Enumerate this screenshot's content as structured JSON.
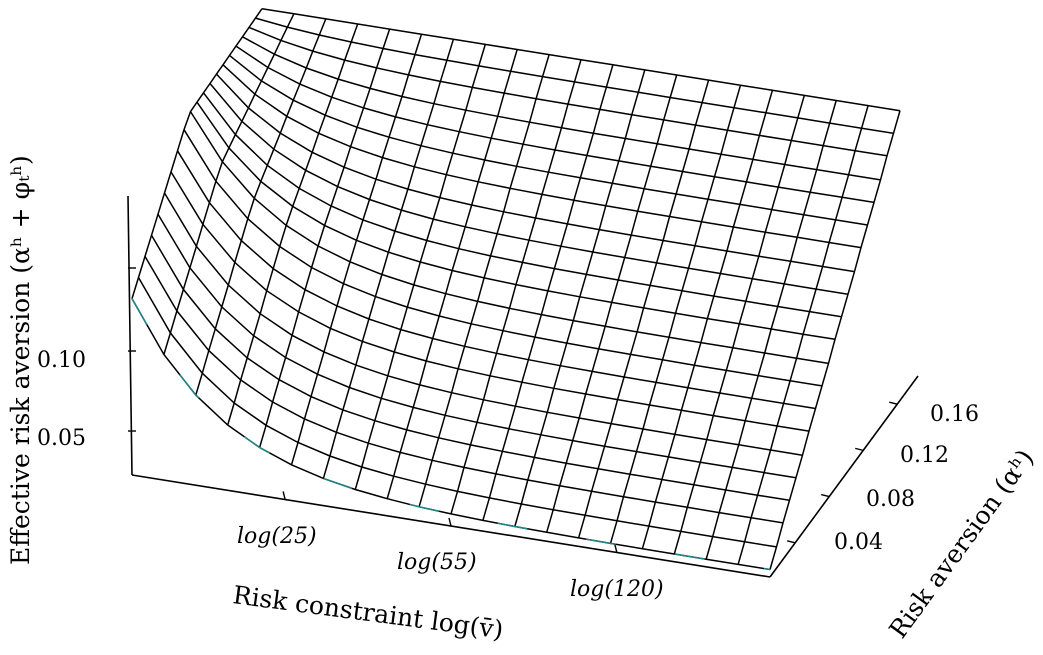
{
  "chart_data": {
    "type": "surface",
    "title": "",
    "xlabel": "Risk constraint log(v̄)",
    "ylabel": "Risk aversion (αʰ)",
    "zlabel": "Effective risk aversion (αʰ + φₜʰ)",
    "x_ticks": [
      "log(25)",
      "log(55)",
      "log(120)"
    ],
    "y_ticks": [
      "0.04",
      "0.08",
      "0.12",
      "0.16"
    ],
    "z_ticks": [
      "0.05",
      "0.10"
    ],
    "x_range": [
      "log(10)",
      "log(200)"
    ],
    "y_range": [
      0.005,
      0.19
    ],
    "z_range": [
      0.0,
      0.19
    ],
    "grid_size": [
      21,
      21
    ],
    "surface": {
      "description_of_shape": "z = alpha + phi; phi large when v-bar is small, decaying toward zero as v-bar grows",
      "alpha_values": [
        0.005,
        0.014,
        0.024,
        0.033,
        0.042,
        0.051,
        0.061,
        0.07,
        0.079,
        0.088,
        0.098,
        0.107,
        0.116,
        0.125,
        0.135,
        0.144,
        0.153,
        0.162,
        0.172,
        0.181,
        0.19
      ],
      "z_at_min_vbar": [
        0.12,
        0.128,
        0.136,
        0.144,
        0.152,
        0.16,
        0.168,
        0.176,
        0.184,
        0.19,
        0.19,
        0.19,
        0.19,
        0.19,
        0.19,
        0.19,
        0.19,
        0.19,
        0.19,
        0.19,
        0.19
      ],
      "z_at_max_vbar": [
        0.005,
        0.014,
        0.024,
        0.033,
        0.042,
        0.051,
        0.061,
        0.07,
        0.079,
        0.088,
        0.098,
        0.107,
        0.116,
        0.125,
        0.135,
        0.144,
        0.153,
        0.162,
        0.172,
        0.181,
        0.19
      ]
    },
    "line_color": "#000000",
    "edge_color": "#1a8a8a"
  }
}
